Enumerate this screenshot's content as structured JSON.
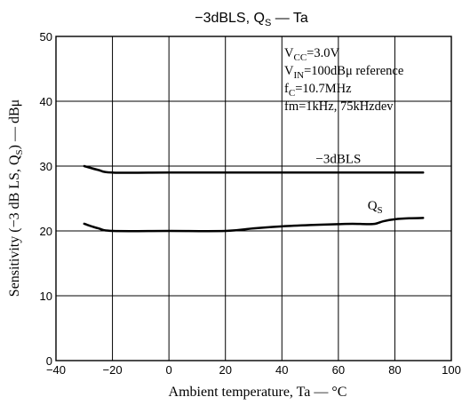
{
  "chart_data": {
    "type": "line",
    "title": {
      "prefix": "−3dBLS, Q",
      "sub": "S",
      "suffix": " — Ta"
    },
    "xlabel": "Ambient temperature, Ta — °C",
    "ylabel": {
      "prefix": "Sensitivity (−3 dB LS, Q",
      "sub": "S",
      "suffix": ") — dBμ"
    },
    "xlim": [
      -40,
      100
    ],
    "ylim": [
      0,
      50
    ],
    "xticks": [
      -40,
      -20,
      0,
      20,
      40,
      60,
      80,
      100
    ],
    "xtick_labels": [
      "−40",
      "−20",
      "0",
      "20",
      "40",
      "60",
      "80",
      "100"
    ],
    "yticks": [
      0,
      10,
      20,
      30,
      40,
      50
    ],
    "ytick_labels": [
      "0",
      "10",
      "20",
      "30",
      "40",
      "50"
    ],
    "grid": true,
    "conditions": [
      {
        "main": "V",
        "sub": "CC",
        "rest": "=3.0V"
      },
      {
        "main": "V",
        "sub": "IN",
        "rest": "=100dBμ reference"
      },
      {
        "main": "f",
        "sub": "C",
        "rest": "=10.7MHz"
      },
      {
        "main": "fm=1kHz, 75kHzdev",
        "sub": "",
        "rest": ""
      }
    ],
    "series": [
      {
        "name": {
          "main": "−3dBLS",
          "sub": ""
        },
        "x": [
          -30,
          -25,
          -20,
          0,
          20,
          40,
          60,
          80,
          90
        ],
        "y": [
          30,
          29.4,
          29,
          29,
          29,
          29,
          29,
          29,
          29
        ],
        "label_at": [
          60,
          30.5
        ]
      },
      {
        "name": {
          "main": "Q",
          "sub": "S"
        },
        "x": [
          -30,
          -25,
          -20,
          0,
          20,
          30,
          40,
          50,
          60,
          65,
          70,
          73,
          76,
          80,
          85,
          90
        ],
        "y": [
          21.1,
          20.4,
          20,
          20,
          20,
          20.4,
          20.7,
          20.9,
          21.05,
          21.1,
          21.05,
          21.1,
          21.5,
          21.8,
          21.95,
          22
        ],
        "label_at": [
          73,
          23.3
        ]
      }
    ]
  }
}
